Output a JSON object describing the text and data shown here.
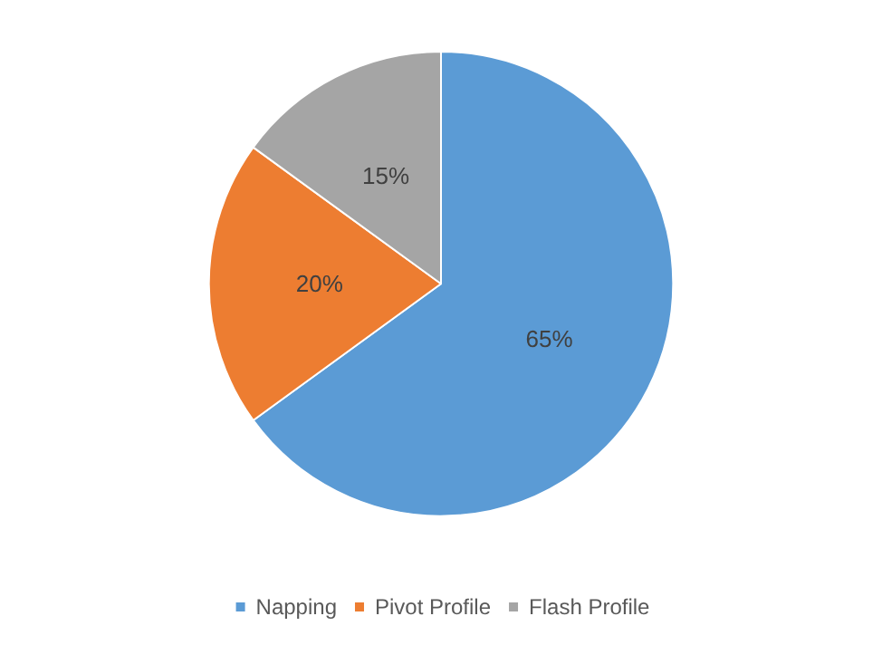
{
  "chart_data": {
    "type": "pie",
    "categories": [
      "Napping",
      "Pivot Profile",
      "Flash Profile"
    ],
    "values": [
      65,
      20,
      15
    ],
    "colors": [
      "#5b9bd5",
      "#ed7d31",
      "#a5a5a5"
    ],
    "value_labels": [
      "65%",
      "20%",
      "15%"
    ],
    "legend": "bottom"
  }
}
